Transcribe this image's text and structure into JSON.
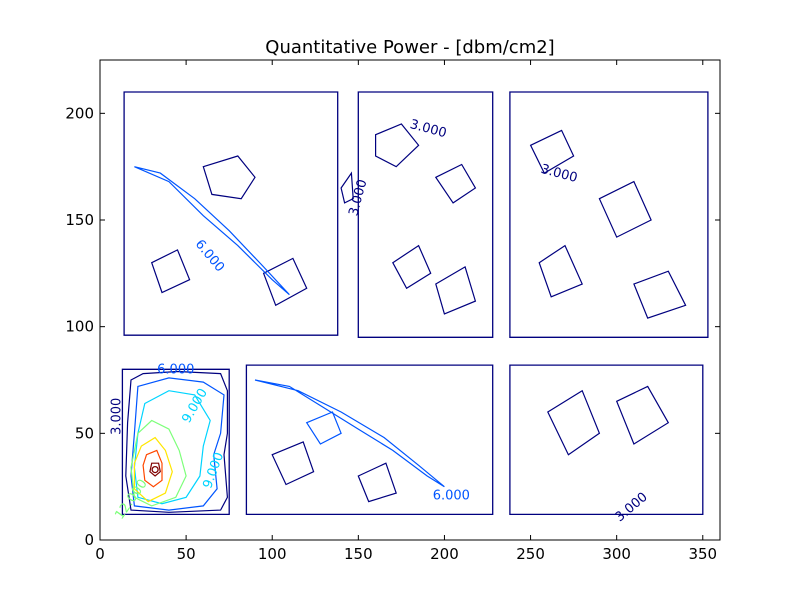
{
  "chart_data": {
    "type": "contour",
    "title": "Quantitative Power - [dbm/cm2]",
    "xlabel": "",
    "ylabel": "",
    "xlim": [
      0,
      360
    ],
    "ylim": [
      0,
      225
    ],
    "x_ticks": [
      0,
      50,
      100,
      150,
      200,
      250,
      300,
      350
    ],
    "y_ticks": [
      0,
      50,
      100,
      150,
      200
    ],
    "grid": false,
    "legend": "none",
    "level_colors": [
      "#00007f",
      "#0055ff",
      "#00d4ff",
      "#7dff7a",
      "#ffe600",
      "#ff4700",
      "#7f0000"
    ],
    "room_outlines": [
      {
        "points": [
          [
            14,
            210
          ],
          [
            138,
            210
          ],
          [
            138,
            96
          ],
          [
            14,
            96
          ]
        ],
        "color": "#00007f"
      },
      {
        "points": [
          [
            150,
            210
          ],
          [
            228,
            210
          ],
          [
            228,
            95
          ],
          [
            150,
            95
          ]
        ],
        "color": "#00007f"
      },
      {
        "points": [
          [
            238,
            210
          ],
          [
            353,
            210
          ],
          [
            353,
            95
          ],
          [
            238,
            95
          ]
        ],
        "color": "#00007f"
      },
      {
        "points": [
          [
            13,
            80
          ],
          [
            75,
            80
          ],
          [
            75,
            12
          ],
          [
            13,
            12
          ]
        ],
        "color": "#00007f"
      },
      {
        "points": [
          [
            85,
            82
          ],
          [
            228,
            82
          ],
          [
            228,
            12
          ],
          [
            85,
            12
          ]
        ],
        "color": "#00007f"
      },
      {
        "points": [
          [
            238,
            82
          ],
          [
            350,
            82
          ],
          [
            350,
            12
          ],
          [
            238,
            12
          ]
        ],
        "color": "#00007f"
      }
    ],
    "corridor_outline": {
      "points": [
        [
          138,
          210
        ],
        [
          150,
          210
        ],
        [
          150,
          95
        ],
        [
          228,
          95
        ],
        [
          228,
          210
        ],
        [
          238,
          210
        ],
        [
          238,
          95
        ],
        [
          238,
          82
        ],
        [
          228,
          82
        ],
        [
          228,
          12
        ]
      ],
      "color": "#00007f"
    },
    "source": {
      "x": 32,
      "y": 33
    },
    "contours": [
      {
        "level": 3,
        "color": "#00007f",
        "points": [
          [
            18,
            75
          ],
          [
            25,
            78
          ],
          [
            45,
            79
          ],
          [
            70,
            78
          ],
          [
            74,
            70
          ],
          [
            74,
            50
          ],
          [
            72,
            40
          ],
          [
            74,
            20
          ],
          [
            70,
            14
          ],
          [
            40,
            13
          ],
          [
            18,
            14
          ],
          [
            15,
            30
          ],
          [
            16,
            55
          ],
          [
            18,
            75
          ]
        ]
      },
      {
        "level": 6,
        "color": "#0055ff",
        "points": [
          [
            22,
            72
          ],
          [
            40,
            76
          ],
          [
            60,
            74
          ],
          [
            72,
            68
          ],
          [
            70,
            50
          ],
          [
            66,
            40
          ],
          [
            68,
            24
          ],
          [
            60,
            16
          ],
          [
            40,
            14
          ],
          [
            20,
            16
          ],
          [
            18,
            30
          ],
          [
            20,
            50
          ],
          [
            22,
            72
          ]
        ]
      },
      {
        "level": 9,
        "color": "#00d4ff",
        "points": [
          [
            26,
            64
          ],
          [
            40,
            70
          ],
          [
            55,
            68
          ],
          [
            64,
            56
          ],
          [
            60,
            44
          ],
          [
            58,
            30
          ],
          [
            50,
            20
          ],
          [
            36,
            17
          ],
          [
            22,
            20
          ],
          [
            20,
            34
          ],
          [
            22,
            50
          ],
          [
            26,
            64
          ]
        ]
      },
      {
        "level": 12,
        "color": "#7dff7a",
        "points": [
          [
            22,
            50
          ],
          [
            30,
            56
          ],
          [
            40,
            52
          ],
          [
            46,
            42
          ],
          [
            50,
            30
          ],
          [
            44,
            20
          ],
          [
            30,
            16
          ],
          [
            20,
            20
          ],
          [
            18,
            34
          ],
          [
            22,
            50
          ]
        ]
      },
      {
        "level": 15,
        "color": "#ffe600",
        "points": [
          [
            24,
            44
          ],
          [
            32,
            48
          ],
          [
            38,
            42
          ],
          [
            42,
            32
          ],
          [
            38,
            22
          ],
          [
            28,
            18
          ],
          [
            20,
            24
          ],
          [
            20,
            36
          ],
          [
            24,
            44
          ]
        ]
      },
      {
        "level": 18,
        "color": "#ff4700",
        "points": [
          [
            27,
            40
          ],
          [
            33,
            42
          ],
          [
            36,
            36
          ],
          [
            36,
            28
          ],
          [
            31,
            25
          ],
          [
            26,
            28
          ],
          [
            25,
            35
          ],
          [
            27,
            40
          ]
        ]
      },
      {
        "level": 21,
        "color": "#7f0000",
        "points": [
          [
            30,
            36
          ],
          [
            34,
            36
          ],
          [
            35,
            32
          ],
          [
            32,
            30
          ],
          [
            29,
            32
          ],
          [
            30,
            36
          ]
        ]
      },
      {
        "level": 3,
        "color": "#00007f",
        "points": [
          [
            140,
            165
          ],
          [
            146,
            172
          ],
          [
            147,
            160
          ],
          [
            142,
            158
          ],
          [
            140,
            165
          ]
        ]
      },
      {
        "level": 3,
        "color": "#00007f",
        "points": [
          [
            60,
            175
          ],
          [
            80,
            180
          ],
          [
            90,
            170
          ],
          [
            82,
            160
          ],
          [
            65,
            162
          ],
          [
            60,
            175
          ]
        ]
      },
      {
        "level": 3,
        "color": "#00007f",
        "points": [
          [
            160,
            190
          ],
          [
            175,
            195
          ],
          [
            185,
            185
          ],
          [
            172,
            175
          ],
          [
            160,
            180
          ],
          [
            160,
            190
          ]
        ]
      },
      {
        "level": 3,
        "color": "#00007f",
        "points": [
          [
            195,
            170
          ],
          [
            210,
            176
          ],
          [
            218,
            165
          ],
          [
            205,
            158
          ],
          [
            195,
            170
          ]
        ]
      },
      {
        "level": 3,
        "color": "#00007f",
        "points": [
          [
            250,
            185
          ],
          [
            268,
            192
          ],
          [
            275,
            180
          ],
          [
            258,
            172
          ],
          [
            250,
            185
          ]
        ]
      },
      {
        "level": 3,
        "color": "#00007f",
        "points": [
          [
            290,
            160
          ],
          [
            310,
            168
          ],
          [
            320,
            150
          ],
          [
            300,
            142
          ],
          [
            290,
            160
          ]
        ]
      },
      {
        "level": 3,
        "color": "#00007f",
        "points": [
          [
            255,
            130
          ],
          [
            270,
            138
          ],
          [
            280,
            120
          ],
          [
            262,
            114
          ],
          [
            255,
            130
          ]
        ]
      },
      {
        "level": 3,
        "color": "#00007f",
        "points": [
          [
            310,
            120
          ],
          [
            330,
            126
          ],
          [
            340,
            110
          ],
          [
            318,
            104
          ],
          [
            310,
            120
          ]
        ]
      },
      {
        "level": 3,
        "color": "#00007f",
        "points": [
          [
            260,
            60
          ],
          [
            280,
            70
          ],
          [
            290,
            50
          ],
          [
            272,
            40
          ],
          [
            260,
            60
          ]
        ]
      },
      {
        "level": 3,
        "color": "#00007f",
        "points": [
          [
            300,
            65
          ],
          [
            318,
            72
          ],
          [
            330,
            55
          ],
          [
            310,
            45
          ],
          [
            300,
            65
          ]
        ]
      },
      {
        "level": 3,
        "color": "#00007f",
        "points": [
          [
            170,
            130
          ],
          [
            185,
            138
          ],
          [
            192,
            125
          ],
          [
            178,
            118
          ],
          [
            170,
            130
          ]
        ]
      },
      {
        "level": 3,
        "color": "#00007f",
        "points": [
          [
            195,
            120
          ],
          [
            212,
            128
          ],
          [
            218,
            112
          ],
          [
            200,
            106
          ],
          [
            195,
            120
          ]
        ]
      },
      {
        "level": 3,
        "color": "#00007f",
        "points": [
          [
            30,
            130
          ],
          [
            45,
            136
          ],
          [
            52,
            122
          ],
          [
            36,
            116
          ],
          [
            30,
            130
          ]
        ]
      },
      {
        "level": 3,
        "color": "#00007f",
        "points": [
          [
            95,
            125
          ],
          [
            112,
            132
          ],
          [
            120,
            118
          ],
          [
            102,
            110
          ],
          [
            95,
            125
          ]
        ]
      },
      {
        "level": 6,
        "color": "#0055ff",
        "points": [
          [
            90,
            75
          ],
          [
            110,
            72
          ],
          [
            130,
            62
          ],
          [
            150,
            52
          ],
          [
            170,
            42
          ],
          [
            190,
            30
          ],
          [
            200,
            25
          ],
          [
            185,
            35
          ],
          [
            165,
            48
          ],
          [
            140,
            60
          ],
          [
            115,
            70
          ],
          [
            90,
            75
          ]
        ]
      },
      {
        "level": 6,
        "color": "#0055ff",
        "points": [
          [
            20,
            175
          ],
          [
            40,
            168
          ],
          [
            60,
            152
          ],
          [
            80,
            138
          ],
          [
            100,
            122
          ],
          [
            110,
            115
          ],
          [
            95,
            128
          ],
          [
            75,
            145
          ],
          [
            55,
            160
          ],
          [
            35,
            172
          ],
          [
            20,
            175
          ]
        ]
      },
      {
        "level": 3,
        "color": "#00007f",
        "points": [
          [
            100,
            40
          ],
          [
            118,
            46
          ],
          [
            124,
            32
          ],
          [
            108,
            26
          ],
          [
            100,
            40
          ]
        ]
      },
      {
        "level": 3,
        "color": "#00007f",
        "points": [
          [
            150,
            30
          ],
          [
            166,
            36
          ],
          [
            172,
            22
          ],
          [
            156,
            18
          ],
          [
            150,
            30
          ]
        ]
      },
      {
        "level": 6,
        "color": "#0055ff",
        "points": [
          [
            120,
            55
          ],
          [
            135,
            60
          ],
          [
            140,
            50
          ],
          [
            128,
            45
          ],
          [
            120,
            55
          ]
        ]
      }
    ],
    "annotations": [
      {
        "text": "3.000",
        "x": 12,
        "y": 58,
        "rotate": -90,
        "color": "#00007f"
      },
      {
        "text": "6.000",
        "x": 44,
        "y": 78,
        "rotate": 0,
        "color": "#0055ff"
      },
      {
        "text": "9.000",
        "x": 57,
        "y": 62,
        "rotate": -60,
        "color": "#00d4ff"
      },
      {
        "text": "9.000",
        "x": 68,
        "y": 32,
        "rotate": -70,
        "color": "#00d4ff"
      },
      {
        "text": "12.000",
        "x": 20,
        "y": 18,
        "rotate": -55,
        "color": "#7dff7a"
      },
      {
        "text": "6.000",
        "x": 62,
        "y": 132,
        "rotate": 50,
        "color": "#0055ff"
      },
      {
        "text": "6.000",
        "x": 204,
        "y": 19,
        "rotate": 0,
        "color": "#0055ff"
      },
      {
        "text": "3.000",
        "x": 152,
        "y": 160,
        "rotate": -75,
        "color": "#00007f"
      },
      {
        "text": "3.000",
        "x": 190,
        "y": 191,
        "rotate": 15,
        "color": "#00007f"
      },
      {
        "text": "3.000",
        "x": 266,
        "y": 170,
        "rotate": 15,
        "color": "#00007f"
      },
      {
        "text": "3.000",
        "x": 310,
        "y": 14,
        "rotate": -40,
        "color": "#00007f"
      }
    ]
  }
}
